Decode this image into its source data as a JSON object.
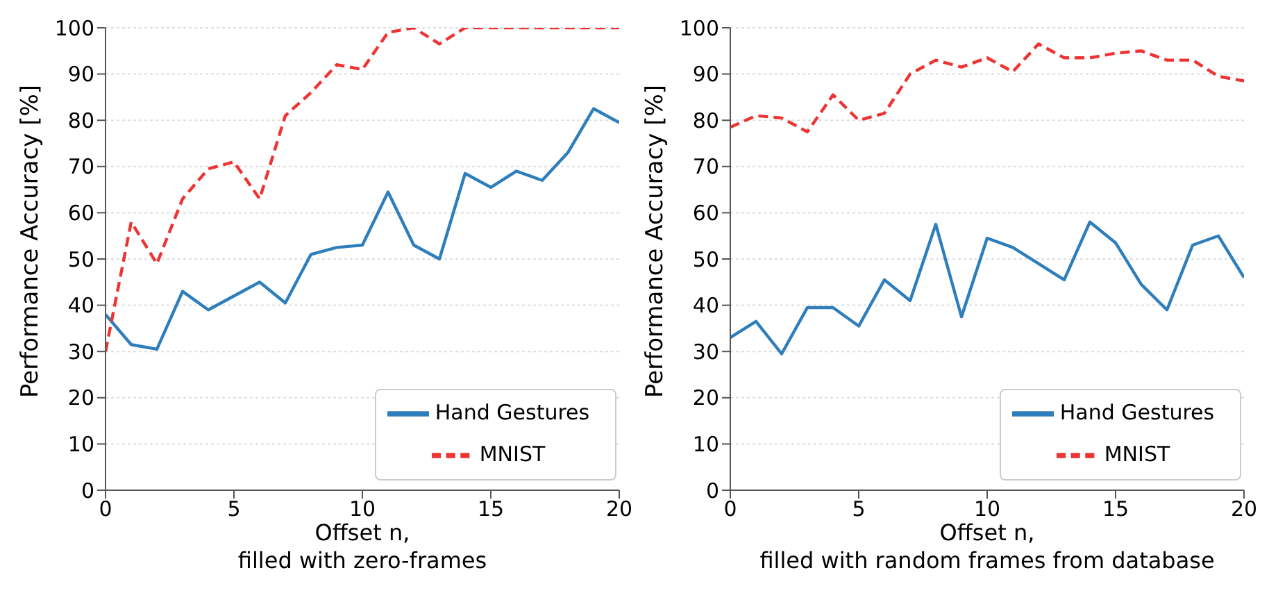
{
  "chart_data": [
    {
      "type": "line",
      "xlabel": "Offset n,\nfilled with zero-frames",
      "ylabel": "Performance Accuracy [%]",
      "x": [
        0,
        1,
        2,
        3,
        4,
        5,
        6,
        7,
        8,
        9,
        10,
        11,
        12,
        13,
        14,
        15,
        16,
        17,
        18,
        19,
        20
      ],
      "xlim": [
        0,
        20
      ],
      "xticks": [
        0,
        5,
        10,
        15,
        20
      ],
      "ylim": [
        0,
        100
      ],
      "yticks": [
        0,
        10,
        20,
        30,
        40,
        50,
        60,
        70,
        80,
        90,
        100
      ],
      "grid": "y",
      "legend": "bottom right",
      "series": [
        {
          "name": "Hand Gestures",
          "color": "#2e7ebc",
          "line_style": "solid",
          "values": [
            38,
            31.5,
            30.5,
            43,
            39,
            42,
            45,
            40.5,
            51,
            52.5,
            53,
            64.5,
            53,
            50,
            68.5,
            65.5,
            69,
            67,
            73,
            82.5,
            79.5
          ]
        },
        {
          "name": "MNIST",
          "color": "#ee3333",
          "line_style": "dashed",
          "values": [
            30,
            58,
            49,
            63,
            69.5,
            71,
            63,
            81,
            86,
            92,
            91,
            99,
            100,
            96.5,
            100,
            100,
            100,
            100,
            100,
            100,
            100
          ]
        }
      ]
    },
    {
      "type": "line",
      "xlabel": "Offset n,\nfilled with random frames from database",
      "ylabel": "Performance Accuracy [%]",
      "x": [
        0,
        1,
        2,
        3,
        4,
        5,
        6,
        7,
        8,
        9,
        10,
        11,
        12,
        13,
        14,
        15,
        16,
        17,
        18,
        19,
        20
      ],
      "xlim": [
        0,
        20
      ],
      "xticks": [
        0,
        5,
        10,
        15,
        20
      ],
      "ylim": [
        0,
        100
      ],
      "yticks": [
        0,
        10,
        20,
        30,
        40,
        50,
        60,
        70,
        80,
        90,
        100
      ],
      "grid": "y",
      "legend": "bottom right",
      "series": [
        {
          "name": "Hand Gestures",
          "color": "#2e7ebc",
          "line_style": "solid",
          "values": [
            33,
            36.5,
            29.5,
            39.5,
            39.5,
            35.5,
            45.5,
            41,
            57.5,
            37.5,
            54.5,
            52.5,
            49,
            45.5,
            58,
            53.5,
            44.5,
            39,
            53,
            55,
            46
          ]
        },
        {
          "name": "MNIST",
          "color": "#ee3333",
          "line_style": "dashed",
          "values": [
            78.5,
            81,
            80.5,
            77.5,
            85.5,
            80,
            81.5,
            90,
            93,
            91.5,
            93.5,
            90.5,
            96.5,
            93.5,
            93.5,
            94.5,
            95,
            93,
            93,
            89.5,
            88.5
          ]
        }
      ]
    }
  ]
}
